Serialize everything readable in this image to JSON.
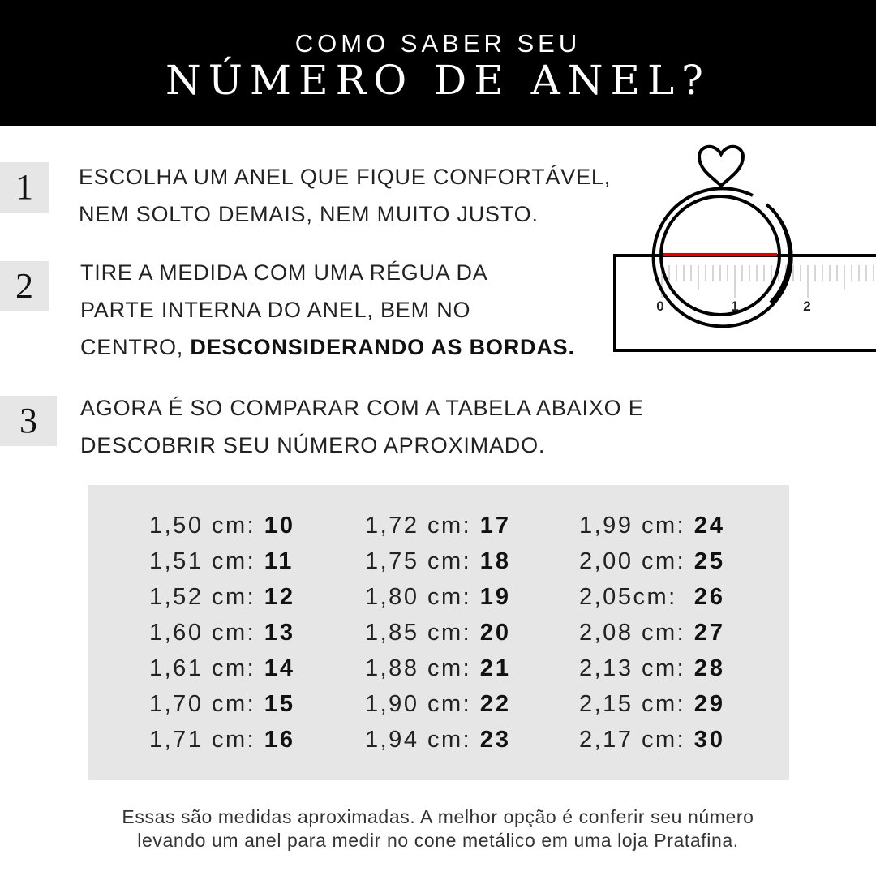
{
  "header": {
    "line1": "COMO SABER SEU",
    "line2": "NÚMERO DE ANEL?"
  },
  "steps": [
    {
      "number": "1",
      "lines": [
        "ESCOLHA UM ANEL QUE FIQUE CONFORTÁVEL,",
        "NEM SOLTO DEMAIS, NEM MUITO JUSTO."
      ]
    },
    {
      "number": "2",
      "lines": [
        "TIRE A MEDIDA COM UMA RÉGUA DA",
        "PARTE INTERNA DO ANEL, BEM NO",
        "CENTRO, "
      ],
      "bold": "DESCONSIDERANDO AS BORDAS."
    },
    {
      "number": "3",
      "lines": [
        "AGORA É SO COMPARAR COM A TABELA ABAIXO E",
        "DESCOBRIR SEU NÚMERO APROXIMADO."
      ]
    }
  ],
  "illustration": {
    "ruler_labels": [
      "0",
      "1",
      "2"
    ],
    "accent_color": "#e00000",
    "icons": [
      "heart-ring-icon",
      "ruler-icon"
    ]
  },
  "size_table": [
    [
      {
        "measure": "1,50 cm: ",
        "size": "10"
      },
      {
        "measure": "1,51 cm: ",
        "size": "11"
      },
      {
        "measure": "1,52 cm: ",
        "size": "12"
      },
      {
        "measure": "1,60 cm: ",
        "size": "13"
      },
      {
        "measure": "1,61 cm: ",
        "size": "14"
      },
      {
        "measure": "1,70 cm: ",
        "size": "15"
      },
      {
        "measure": "1,71 cm: ",
        "size": "16"
      }
    ],
    [
      {
        "measure": "1,72 cm: ",
        "size": "17"
      },
      {
        "measure": "1,75 cm: ",
        "size": "18"
      },
      {
        "measure": "1,80 cm: ",
        "size": "19"
      },
      {
        "measure": "1,85 cm: ",
        "size": "20"
      },
      {
        "measure": "1,88 cm: ",
        "size": "21"
      },
      {
        "measure": "1,90 cm: ",
        "size": "22"
      },
      {
        "measure": "1,94 cm: ",
        "size": "23"
      }
    ],
    [
      {
        "measure": "1,99 cm: ",
        "size": "24"
      },
      {
        "measure": "2,00 cm: ",
        "size": "25"
      },
      {
        "measure": "2,05cm:  ",
        "size": "26"
      },
      {
        "measure": "2,08 cm: ",
        "size": "27"
      },
      {
        "measure": "2,13 cm: ",
        "size": "28"
      },
      {
        "measure": "2,15 cm: ",
        "size": "29"
      },
      {
        "measure": "2,17 cm: ",
        "size": "30"
      }
    ]
  ],
  "footer": [
    "Essas são medidas aproximadas. A melhor opção é conferir seu número",
    "levando um anel para medir no cone metálico em uma loja Pratafina."
  ]
}
